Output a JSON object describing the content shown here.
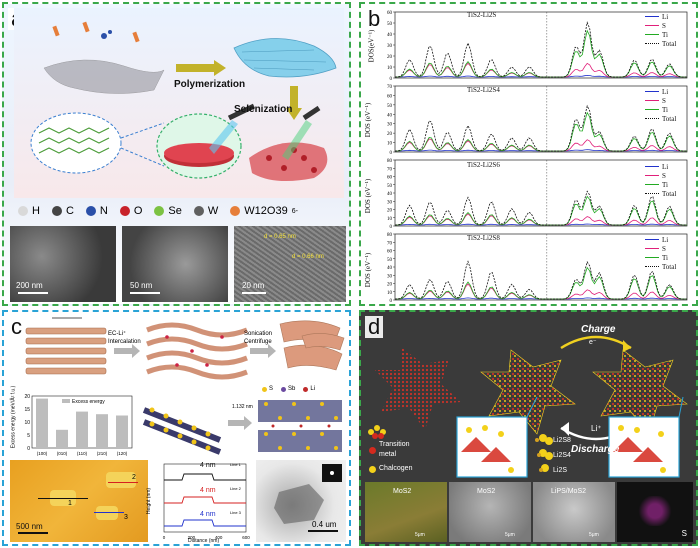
{
  "panels": {
    "a": {
      "label": "a",
      "steps": {
        "polymerization": "Polymerization",
        "selenization": "Selenization"
      },
      "atom_legend": [
        {
          "symbol": "H",
          "color": "#d9d9d9"
        },
        {
          "symbol": "C",
          "color": "#444444"
        },
        {
          "symbol": "N",
          "color": "#2a4fa8"
        },
        {
          "symbol": "O",
          "color": "#c8222a"
        },
        {
          "symbol": "Se",
          "color": "#7cc242"
        },
        {
          "symbol": "W",
          "color": "#606060"
        },
        {
          "symbol": "W12O39",
          "color": "#e67e3a",
          "suffix": "6-"
        }
      ],
      "micrographs": [
        {
          "scale": "200 nm"
        },
        {
          "scale": "50 nm"
        },
        {
          "scale": "20 nm",
          "annotations": [
            "d = 0.65 nm",
            "d = 0.66 nm"
          ]
        }
      ]
    },
    "b": {
      "label": "b",
      "plots": [
        {
          "title": "TiS2-Li2S",
          "ylabel": "DOS(eV⁻¹)",
          "yticks": [
            0,
            10,
            20,
            30,
            40,
            50,
            60
          ]
        },
        {
          "title": "TiS2-Li2S4",
          "ylabel": "DOS (eV⁻¹)",
          "yticks": [
            0,
            10,
            20,
            30,
            40,
            50,
            60,
            70
          ]
        },
        {
          "title": "TiS2-Li2S6",
          "ylabel": "DOS (eV⁻¹)",
          "yticks": [
            0,
            10,
            20,
            30,
            40,
            50,
            60,
            70,
            80
          ]
        },
        {
          "title": "TiS2-Li2S8",
          "ylabel": "DOS (eV⁻¹)",
          "yticks": [
            0,
            10,
            20,
            30,
            40,
            50,
            60,
            70,
            80
          ]
        }
      ],
      "legend": [
        {
          "name": "Li",
          "color": "#2233cc",
          "dash": false
        },
        {
          "name": "S",
          "color": "#e0207a",
          "dash": false
        },
        {
          "name": "Ti",
          "color": "#22aa22",
          "dash": false
        },
        {
          "name": "Total",
          "color": "#111111",
          "dash": true
        }
      ]
    },
    "c": {
      "label": "c",
      "process": {
        "intercalation": "EC-Li⁺\nIntercalation",
        "sonication": "Sonication\nCentrifuge"
      },
      "bar_chart": {
        "type": "bar",
        "legend": "Excess energy",
        "ylabel": "Excess energy (meV/Å² f.u.)",
        "categories": [
          "(100)",
          "(010)",
          "(110)",
          "(210)",
          "(120)"
        ],
        "values": [
          19,
          7,
          14,
          13,
          12.5
        ],
        "ylim": [
          0,
          20
        ],
        "yticks": [
          0,
          5,
          10,
          15,
          20
        ]
      },
      "crystal_legend": [
        "S",
        "Sb",
        "Li"
      ],
      "distance_label": "1.132 nm",
      "afm": {
        "scale": "500 nm",
        "markers": [
          "1",
          "2",
          "3"
        ]
      },
      "profiles": [
        {
          "label": "4 nm",
          "line": "Line 1",
          "color": "#111111"
        },
        {
          "label": "4 nm",
          "line": "Line 2",
          "color": "#d62020"
        },
        {
          "label": "4 nm",
          "line": "Line 3",
          "color": "#2233cc"
        }
      ],
      "profile_axes": {
        "ylabel": "Height (nm)",
        "xlabel": "Distance (nm)",
        "xticks": [
          "0",
          "200",
          "400",
          "600"
        ]
      },
      "tem_scale": "0.4 um"
    },
    "d": {
      "label": "d",
      "charge": "Charge",
      "electron": "e⁻",
      "discharge": "Discharge",
      "li_ion": "Li⁺",
      "atom_legend": [
        {
          "name": "Transition metal",
          "color": "#d42a1e"
        },
        {
          "name": "Chalcogen",
          "color": "#f3d11a"
        }
      ],
      "species": [
        "Li2S8",
        "Li2S4",
        "Li2S"
      ],
      "images": [
        {
          "label": "MoS2",
          "scale": "5μm"
        },
        {
          "label": "MoS2",
          "scale": "5μm"
        },
        {
          "label": "LiPS/MoS2",
          "scale": "5μm"
        },
        {
          "label": "S",
          "scale": ""
        }
      ]
    }
  }
}
